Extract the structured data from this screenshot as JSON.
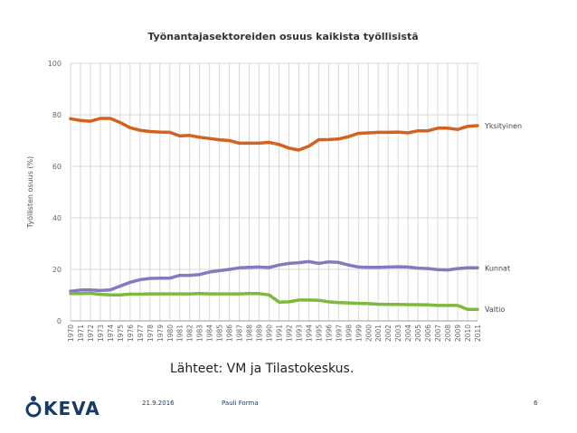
{
  "chart_data": {
    "type": "line",
    "title": "Työnantajasektoreiden osuus kaikista työllisistä",
    "xlabel": "",
    "ylabel": "Työllisten osuus (%)",
    "ylim": [
      0,
      100
    ],
    "yticks": [
      0,
      20,
      40,
      60,
      80,
      100
    ],
    "grid": true,
    "categories": [
      "1970",
      "1971",
      "1972",
      "1973",
      "1974",
      "1975",
      "1976",
      "1977",
      "1978",
      "1979",
      "1980",
      "1981",
      "1982",
      "1983",
      "1984",
      "1985",
      "1986",
      "1987",
      "1988",
      "1989",
      "1990",
      "1991",
      "1992",
      "1993",
      "1994",
      "1995",
      "1996",
      "1997",
      "1998",
      "1999",
      "2000",
      "2001",
      "2002",
      "2003",
      "2004",
      "2005",
      "2006",
      "2007",
      "2008",
      "2009",
      "2010",
      "2011"
    ],
    "series": [
      {
        "name": "Yksityinen",
        "color": "#d4611e",
        "values": [
          78.5,
          77.8,
          77.5,
          78.6,
          78.6,
          77,
          75,
          74,
          73.5,
          73.3,
          73.2,
          71.8,
          72,
          71.3,
          70.8,
          70.3,
          70,
          69,
          69,
          69,
          69.3,
          68.5,
          67.1,
          66.3,
          67.8,
          70.3,
          70.4,
          70.6,
          71.5,
          72.8,
          73,
          73.2,
          73.2,
          73.3,
          73,
          73.8,
          73.8,
          74.8,
          74.8,
          74.3,
          75.5,
          75.8
        ]
      },
      {
        "name": "Kunnat",
        "color": "#8878c0",
        "values": [
          11.5,
          12,
          12,
          11.8,
          12,
          13.5,
          15,
          16,
          16.5,
          16.6,
          16.6,
          17.7,
          17.7,
          18,
          19,
          19.5,
          20,
          20.6,
          20.8,
          20.9,
          20.7,
          21.7,
          22.3,
          22.6,
          23,
          22.3,
          22.9,
          22.7,
          21.7,
          20.9,
          20.8,
          20.8,
          20.9,
          21,
          20.9,
          20.5,
          20.3,
          19.9,
          19.8,
          20.3,
          20.6,
          20.6
        ]
      },
      {
        "name": "Valtio",
        "color": "#7dba3a",
        "values": [
          10.6,
          10.6,
          10.7,
          10.3,
          10.1,
          10.1,
          10.4,
          10.4,
          10.5,
          10.5,
          10.5,
          10.5,
          10.5,
          10.6,
          10.5,
          10.5,
          10.5,
          10.5,
          10.6,
          10.6,
          10.1,
          7.3,
          7.4,
          8.1,
          8.1,
          8,
          7.4,
          7.1,
          7,
          6.8,
          6.7,
          6.5,
          6.4,
          6.4,
          6.3,
          6.3,
          6.2,
          6,
          6,
          6,
          4.5,
          4.5
        ]
      }
    ]
  },
  "source_text": "Lähteet: VM ja Tilastokeskus.",
  "footer": {
    "logo_text": "KEVA",
    "date": "21.9.2016",
    "author": "Pauli Forma",
    "page": "6"
  },
  "colors": {
    "brand": "#1a3a66",
    "grid": "#d8d8d8",
    "axis_text": "#666666"
  }
}
